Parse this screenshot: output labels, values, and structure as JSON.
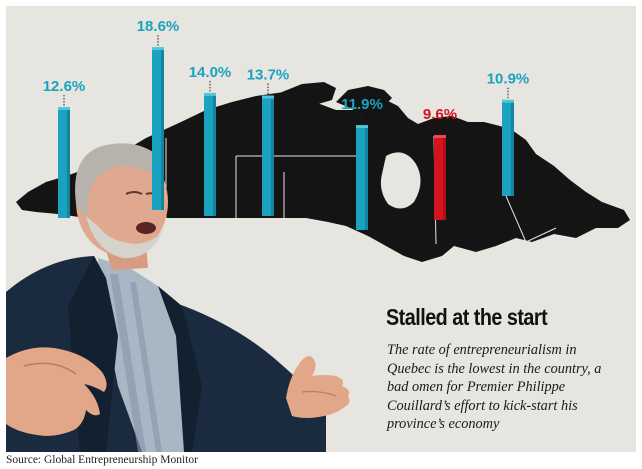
{
  "headline": "Stalled at the start",
  "body": "The rate of entrepreneurialism in Quebec is the lowest in the country, a bad omen for Premier Philippe Couillard’s effort to kick-start his province’s economy",
  "source": "Source: Global Entrepreneurship Monitor",
  "colors": {
    "bar_default": "#1aa3c0",
    "bar_highlight": "#d4141c",
    "label_default": "#1aa3c0",
    "label_highlight": "#d4141c",
    "map": "#141414",
    "panel_bg": "#e6e5e0"
  },
  "chart_data": {
    "type": "bar",
    "title": "",
    "xlabel": "",
    "ylabel": "",
    "values": [
      12.6,
      18.6,
      14.0,
      13.7,
      11.9,
      9.6,
      10.9
    ],
    "labels": [
      "12.6%",
      "18.6%",
      "14.0%",
      "13.7%",
      "11.9%",
      "9.6%",
      "10.9%"
    ],
    "highlight_index": 5,
    "highlight_note": "Quebec",
    "grid": false,
    "legend": "none",
    "background": "map of Canada"
  }
}
